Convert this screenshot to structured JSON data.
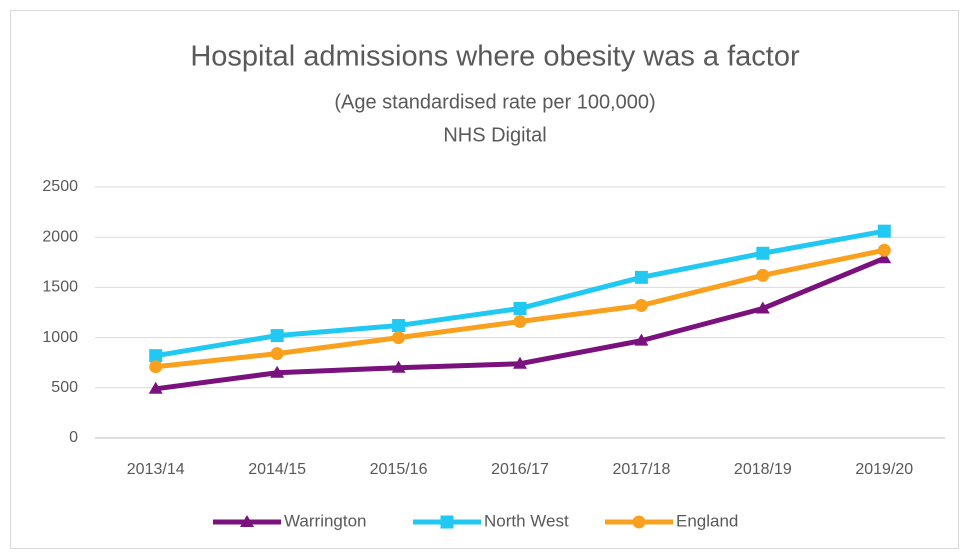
{
  "chart_data": {
    "type": "line",
    "title": "Hospital admissions where obesity was a factor",
    "subtitle": "(Age standardised rate per 100,000)",
    "source": "NHS Digital",
    "categories": [
      "2013/14",
      "2014/15",
      "2015/16",
      "2016/17",
      "2017/18",
      "2018/19",
      "2019/20"
    ],
    "series": [
      {
        "name": "Warrington",
        "color": "#7a127e",
        "marker": "triangle",
        "values": [
          490,
          650,
          700,
          740,
          970,
          1290,
          1790
        ]
      },
      {
        "name": "North West",
        "color": "#21c8f2",
        "marker": "square",
        "values": [
          820,
          1020,
          1120,
          1290,
          1600,
          1840,
          2060
        ]
      },
      {
        "name": "England",
        "color": "#f9a11e",
        "marker": "circle",
        "values": [
          710,
          840,
          1000,
          1160,
          1320,
          1620,
          1870
        ]
      }
    ],
    "ylim": [
      0,
      2500
    ],
    "yticks": [
      0,
      500,
      1000,
      1500,
      2000,
      2500
    ],
    "grid": true,
    "legend": "bottom"
  }
}
